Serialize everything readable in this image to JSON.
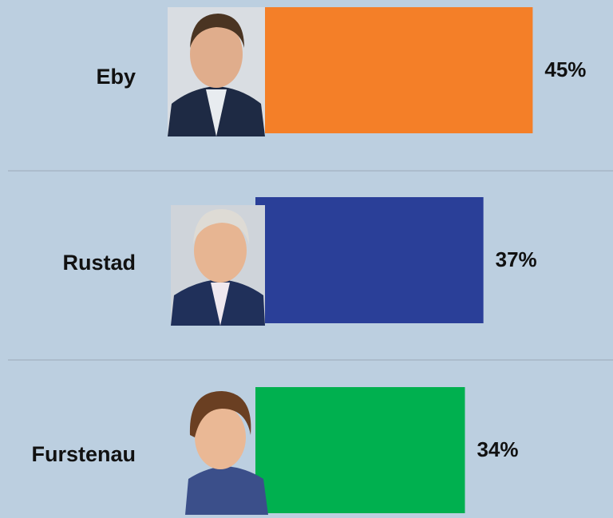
{
  "chart_data": {
    "type": "bar",
    "orientation": "horizontal",
    "categories": [
      "Eby",
      "Rustad",
      "Furstenau"
    ],
    "values": [
      45,
      37,
      34
    ],
    "value_labels": [
      "45%",
      "37%",
      "34%"
    ],
    "colors": [
      "#f47f28",
      "#2a3f98",
      "#00b04f"
    ]
  }
}
